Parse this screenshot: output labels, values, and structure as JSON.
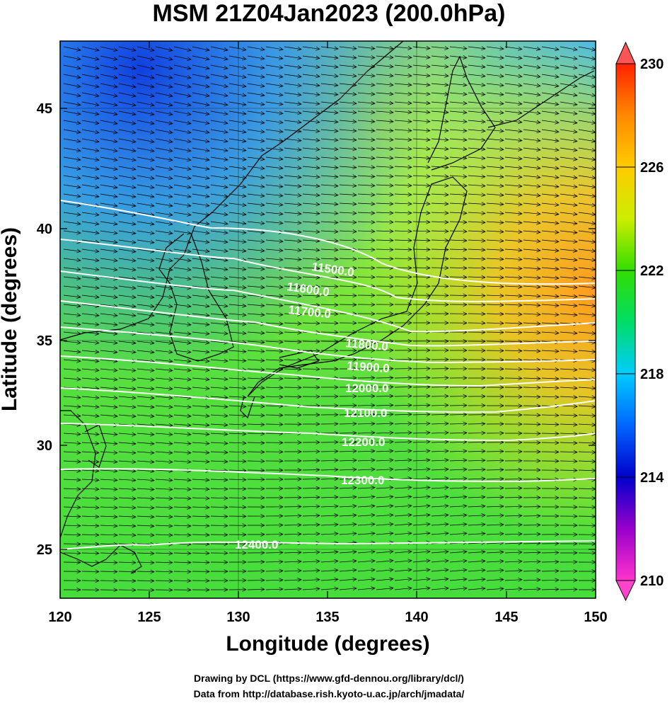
{
  "title": "MSM 21Z04Jan2023 (200.0hPa)",
  "xaxis": {
    "label": "Longitude (degrees)",
    "ticks": [
      "120",
      "125",
      "130",
      "135",
      "140",
      "145",
      "150"
    ],
    "range": [
      120,
      150
    ]
  },
  "yaxis": {
    "label": "Latitude  (degrees)",
    "ticks": [
      "25",
      "30",
      "35",
      "40",
      "45"
    ],
    "range": [
      22.4,
      47.6
    ]
  },
  "colorbar": {
    "range": [
      210,
      230
    ],
    "labels": [
      "210",
      "214",
      "218",
      "222",
      "226",
      "230"
    ],
    "colors": [
      "#ff33cc",
      "#9900cc",
      "#0000cc",
      "#0066ff",
      "#00ccff",
      "#00dd66",
      "#33dd00",
      "#ccee00",
      "#ffcc00",
      "#ff8800",
      "#ff2200"
    ]
  },
  "contours": [
    "11500.0",
    "11600.0",
    "11700.0",
    "11800.0",
    "11900.0",
    "12000.0",
    "12100.0",
    "12200.0",
    "12300.0",
    "12400.0"
  ],
  "credits": [
    "Drawing by DCL (https://www.gfd-dennou.org/library/dcl/)",
    "Data from http://database.rish.kyoto-u.ac.jp/arch/jmadata/"
  ]
}
